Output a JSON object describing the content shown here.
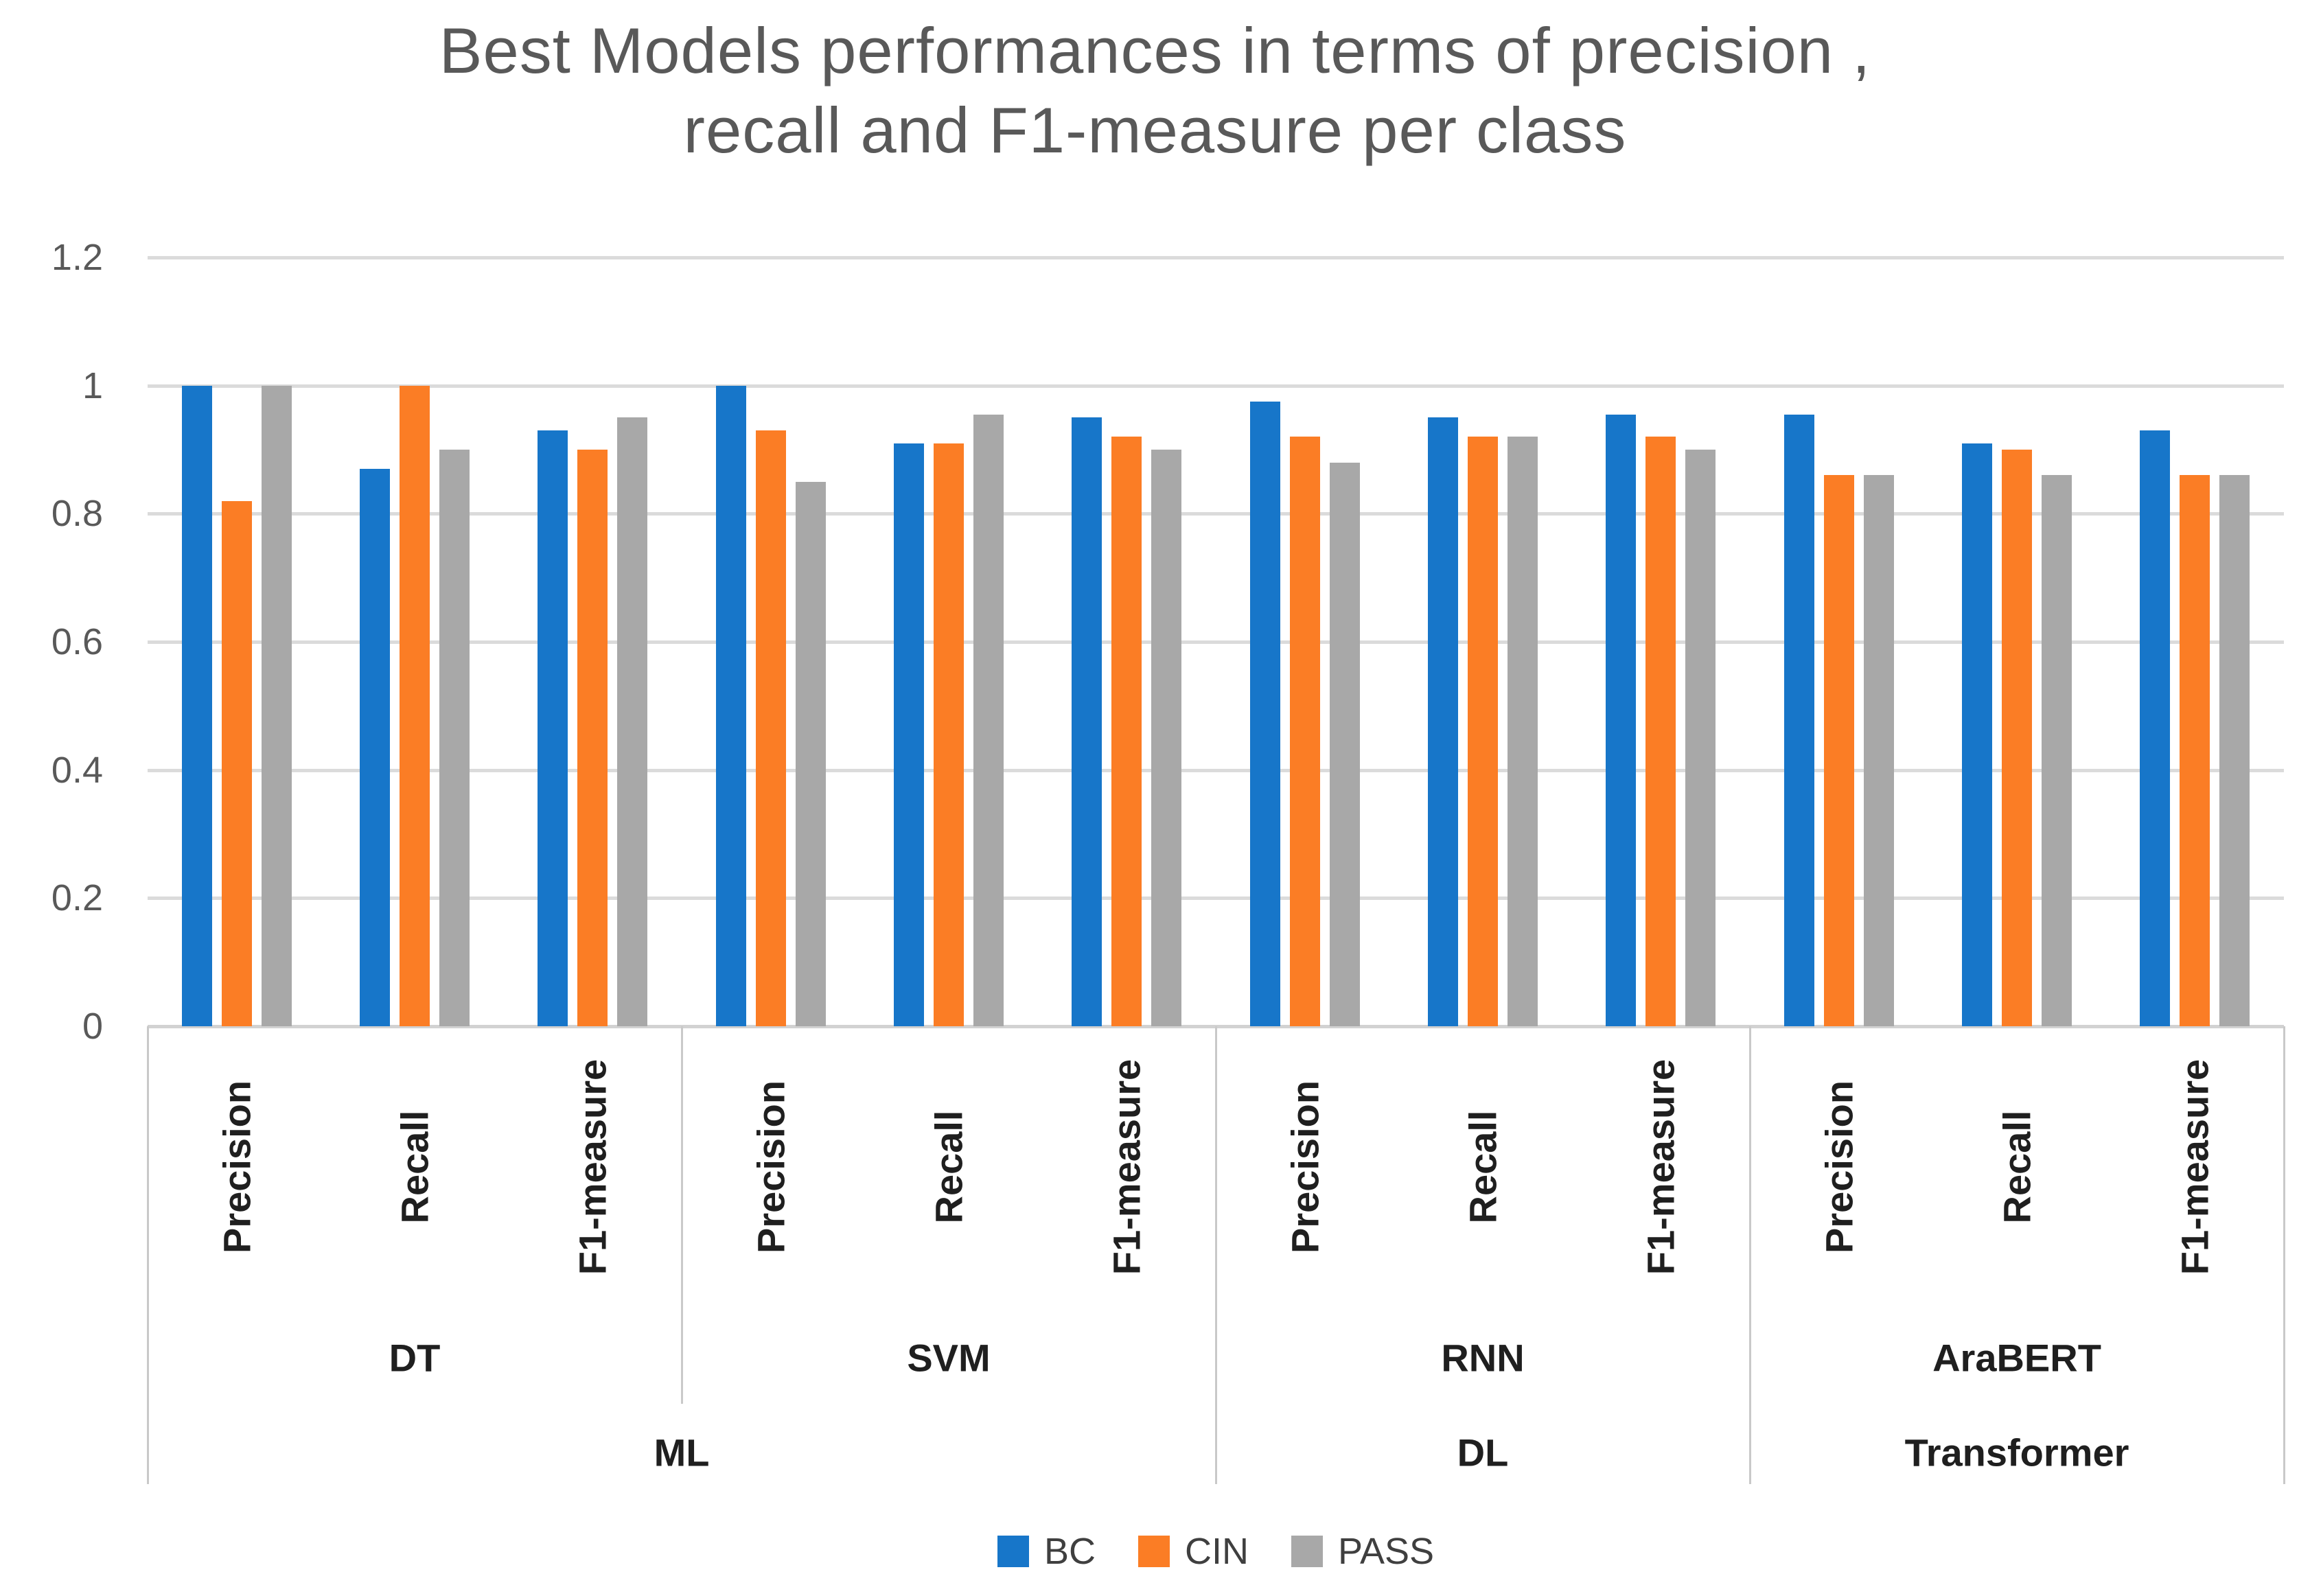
{
  "title": {
    "line1": "Best Models performances in terms of precision ,",
    "line2": "recall and F1-measure per class"
  },
  "colors": {
    "bc_blue": "#1776C9",
    "cin_orange": "#FB7D25",
    "pass_gray": "#A8A8A8",
    "gridline": "#DBDBDB",
    "axis_divider": "#C9C9C9",
    "title_text": "#595959",
    "tick_text": "#595959",
    "category_text": "#1F1F1F",
    "legend_text": "#3F3F3F",
    "background": "#FFFFFF"
  },
  "chart_data": {
    "type": "bar",
    "title": "Best Models performances in terms of precision , recall and F1-measure per class",
    "xlabel": "",
    "ylabel": "",
    "ylim": [
      0,
      1.2
    ],
    "y_ticks": [
      0,
      0.2,
      0.4,
      0.6,
      0.8,
      1,
      1.2
    ],
    "y_tick_labels": [
      "0",
      "0.2",
      "0.4",
      "0.6",
      "0.8",
      "1",
      "1.2"
    ],
    "grid": true,
    "legend_position": "bottom",
    "categories": [
      {
        "measure": "Precision",
        "model": "DT",
        "family": "ML"
      },
      {
        "measure": "Recall",
        "model": "DT",
        "family": "ML"
      },
      {
        "measure": "F1-measure",
        "model": "DT",
        "family": "ML"
      },
      {
        "measure": "Precision",
        "model": "SVM",
        "family": "ML"
      },
      {
        "measure": "Recall",
        "model": "SVM",
        "family": "ML"
      },
      {
        "measure": "F1-measure",
        "model": "SVM",
        "family": "ML"
      },
      {
        "measure": "Precision",
        "model": "RNN",
        "family": "DL"
      },
      {
        "measure": "Recall",
        "model": "RNN",
        "family": "DL"
      },
      {
        "measure": "F1-measure",
        "model": "RNN",
        "family": "DL"
      },
      {
        "measure": "Precision",
        "model": "AraBERT",
        "family": "Transformer"
      },
      {
        "measure": "Recall",
        "model": "AraBERT",
        "family": "Transformer"
      },
      {
        "measure": "F1-measure",
        "model": "AraBERT",
        "family": "Transformer"
      }
    ],
    "model_spans": [
      {
        "label": "DT",
        "from": 0,
        "to": 2
      },
      {
        "label": "SVM",
        "from": 3,
        "to": 5
      },
      {
        "label": "RNN",
        "from": 6,
        "to": 8
      },
      {
        "label": "AraBERT",
        "from": 9,
        "to": 11
      }
    ],
    "family_spans": [
      {
        "label": "ML",
        "from": 0,
        "to": 5
      },
      {
        "label": "DL",
        "from": 6,
        "to": 8
      },
      {
        "label": "Transformer",
        "from": 9,
        "to": 11
      }
    ],
    "series": [
      {
        "name": "BC",
        "color": "#1776C9",
        "values": [
          1.0,
          0.87,
          0.93,
          1.0,
          0.91,
          0.95,
          0.975,
          0.95,
          0.955,
          0.955,
          0.91,
          0.93
        ]
      },
      {
        "name": "CIN",
        "color": "#FB7D25",
        "values": [
          0.82,
          1.0,
          0.9,
          0.93,
          0.91,
          0.92,
          0.92,
          0.92,
          0.92,
          0.86,
          0.9,
          0.86
        ]
      },
      {
        "name": "PASS",
        "color": "#A8A8A8",
        "values": [
          1.0,
          0.9,
          0.95,
          0.85,
          0.955,
          0.9,
          0.88,
          0.92,
          0.9,
          0.86,
          0.86,
          0.86
        ]
      }
    ]
  }
}
